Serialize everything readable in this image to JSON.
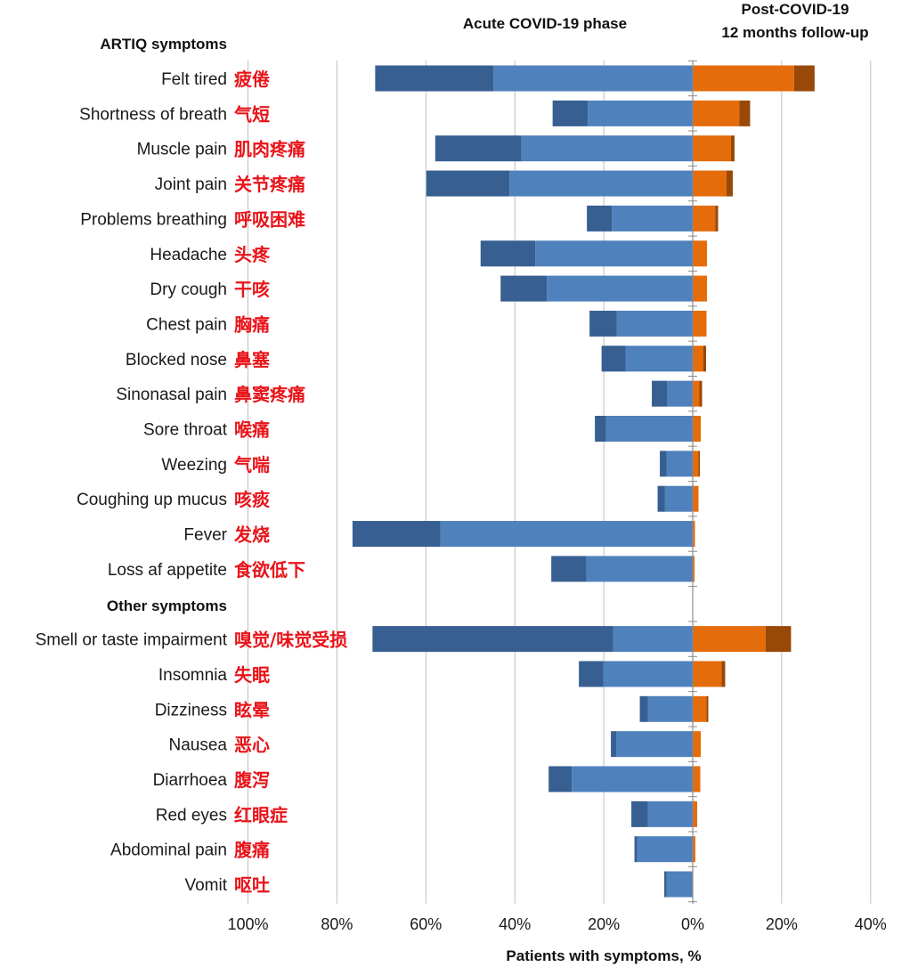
{
  "chart_data": {
    "type": "bar",
    "orientation": "horizontal-diverging",
    "title": "",
    "xlabel": "Patients with symptoms, %",
    "panels": {
      "acute": {
        "title": "Acute COVID-19 phase",
        "xlim": [
          100,
          0
        ],
        "direction": "leftward"
      },
      "post": {
        "title_line1": "Post-COVID-19",
        "title_line2": "12 months follow-up",
        "xlim": [
          0,
          40
        ],
        "direction": "rightward"
      }
    },
    "x_ticks": [
      "100%",
      "80%",
      "60%",
      "40%",
      "20%",
      "0%",
      "20%",
      "40%"
    ],
    "sections": [
      {
        "label": "ARTIQ symptoms",
        "before_index": 0
      },
      {
        "label": "Other symptoms",
        "before_index": 15
      }
    ],
    "categories": [
      {
        "en": "Felt tired",
        "zh": "疲倦"
      },
      {
        "en": "Shortness of breath",
        "zh": "气短"
      },
      {
        "en": "Muscle pain",
        "zh": "肌肉疼痛"
      },
      {
        "en": "Joint pain",
        "zh": "关节疼痛"
      },
      {
        "en": "Problems breathing",
        "zh": "呼吸困难"
      },
      {
        "en": "Headache",
        "zh": "头疼"
      },
      {
        "en": "Dry cough",
        "zh": "干咳"
      },
      {
        "en": "Chest pain",
        "zh": "胸痛"
      },
      {
        "en": "Blocked nose",
        "zh": "鼻塞"
      },
      {
        "en": "Sinonasal pain",
        "zh": "鼻窦疼痛"
      },
      {
        "en": "Sore throat",
        "zh": "喉痛"
      },
      {
        "en": "Weezing",
        "zh": "气喘"
      },
      {
        "en": "Coughing up mucus",
        "zh": "咳痰"
      },
      {
        "en": "Fever",
        "zh": "发烧"
      },
      {
        "en": "Loss af appetite",
        "zh": "食欲低下"
      },
      {
        "en": "Smell or taste impairment",
        "zh": "嗅觉/味觉受损"
      },
      {
        "en": "Insomnia",
        "zh": "失眠"
      },
      {
        "en": "Dizziness",
        "zh": "眩晕"
      },
      {
        "en": "Nausea",
        "zh": "恶心"
      },
      {
        "en": "Diarrhoea",
        "zh": "腹泻"
      },
      {
        "en": "Red eyes",
        "zh": "红眼症"
      },
      {
        "en": "Abdominal pain",
        "zh": "腹痛"
      },
      {
        "en": "Vomit",
        "zh": "呕吐"
      }
    ],
    "series": [
      {
        "name": "Acute (light)",
        "panel": "acute",
        "color": "#4f81bd",
        "values": [
          44.8,
          23.6,
          38.5,
          41.2,
          18.2,
          35.4,
          32.8,
          17.1,
          15.1,
          5.8,
          19.5,
          5.9,
          6.3,
          56.7,
          23.9,
          17.9,
          20.1,
          10.1,
          17.2,
          27.2,
          10.1,
          12.5,
          5.9
        ]
      },
      {
        "name": "Acute (dark)",
        "panel": "acute",
        "color": "#375f91",
        "values": [
          26.6,
          7.9,
          19.4,
          18.7,
          5.6,
          12.3,
          10.4,
          6.1,
          5.4,
          3.4,
          2.5,
          1.5,
          1.6,
          19.8,
          7.9,
          54.1,
          5.5,
          1.8,
          1.2,
          5.2,
          3.7,
          0.6,
          0.5
        ]
      },
      {
        "name": "Post (light)",
        "panel": "post",
        "color": "#e46c0a",
        "values": [
          22.8,
          10.5,
          8.6,
          7.6,
          5.1,
          3.2,
          3.2,
          3.1,
          2.4,
          1.5,
          1.8,
          1.3,
          1.3,
          0.5,
          0.4,
          16.4,
          6.5,
          3.1,
          1.8,
          1.7,
          1.0,
          0.6,
          0.0
        ]
      },
      {
        "name": "Post (dark)",
        "panel": "post",
        "color": "#984807",
        "values": [
          4.6,
          2.4,
          0.8,
          1.4,
          0.6,
          0.0,
          0.0,
          0.0,
          0.6,
          0.6,
          0.0,
          0.3,
          0.0,
          0.0,
          0.0,
          5.7,
          0.8,
          0.4,
          0.0,
          0.0,
          0.0,
          0.0,
          0.0
        ]
      }
    ],
    "grid": true,
    "legend": "none"
  }
}
